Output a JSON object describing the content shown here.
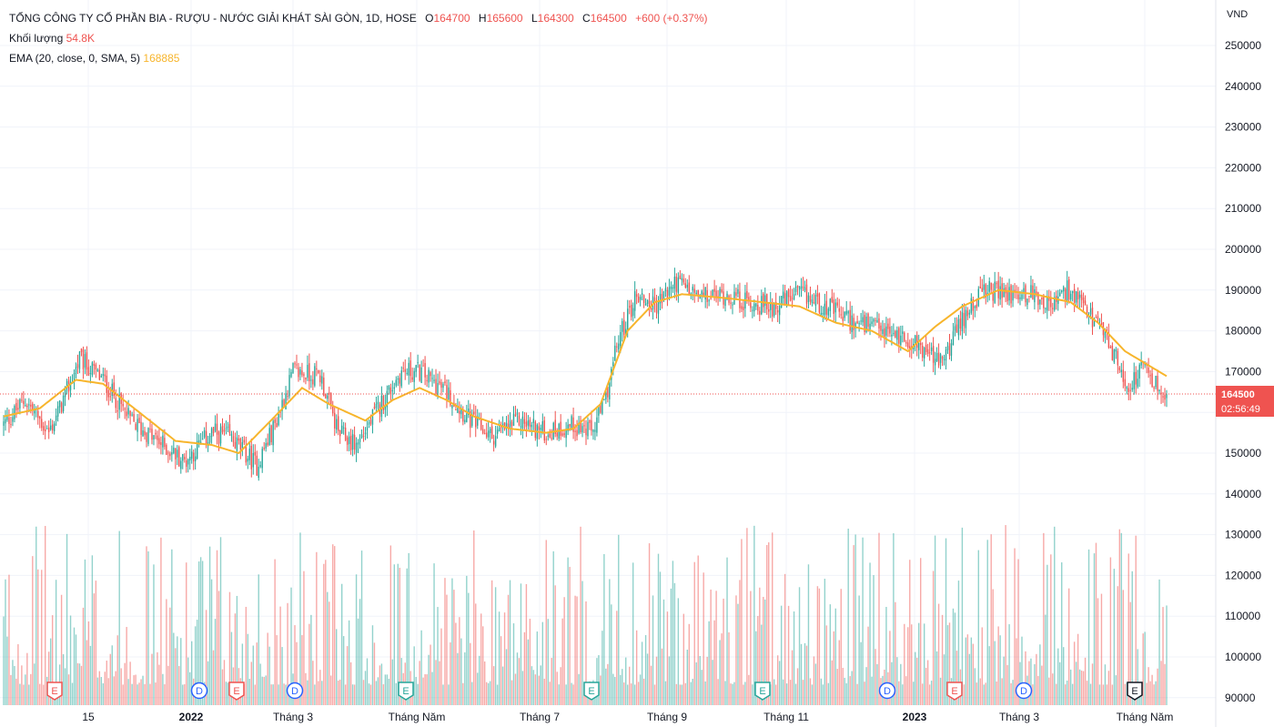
{
  "legend": {
    "title": "TỔNG CÔNG TY CỔ PHẦN BIA - RƯỢU - NƯỚC GIẢI KHÁT SÀI GÒN, 1D, HOSE",
    "open_label": "O",
    "open": "164700",
    "high_label": "H",
    "high": "165600",
    "low_label": "L",
    "low": "164300",
    "close_label": "C",
    "close": "164500",
    "change": "+600 (+0.37%)",
    "volume_label": "Khối lượng",
    "volume": "54.8K",
    "ema_label": "EMA (20, close, 0, SMA, 5)",
    "ema": "168885"
  },
  "currency": "VND",
  "last_price": {
    "price": "164500",
    "countdown": "02:56:49"
  },
  "colors": {
    "up": "#26a69a",
    "down": "#ef5350",
    "ema": "#f7b52c",
    "grid": "#f0f3fa",
    "text": "#131722"
  },
  "markers": [
    {
      "letter": "E",
      "kind": "earnings-miss",
      "x_label_index": 0
    },
    {
      "letter": "D",
      "kind": "dividend"
    },
    {
      "letter": "E",
      "kind": "earnings-miss"
    },
    {
      "letter": "D",
      "kind": "dividend"
    },
    {
      "letter": "E",
      "kind": "earnings-beat"
    },
    {
      "letter": "E",
      "kind": "earnings-beat"
    },
    {
      "letter": "E",
      "kind": "earnings-beat"
    },
    {
      "letter": "D",
      "kind": "dividend"
    },
    {
      "letter": "E",
      "kind": "earnings-miss"
    },
    {
      "letter": "D",
      "kind": "dividend"
    },
    {
      "letter": "E",
      "kind": "earnings-upcoming"
    }
  ],
  "chart_data": {
    "type": "candlestick",
    "ylim": [
      90000,
      255000
    ],
    "y_ticks": [
      "250000",
      "240000",
      "230000",
      "220000",
      "210000",
      "200000",
      "190000",
      "180000",
      "170000",
      "160000",
      "150000",
      "140000",
      "130000",
      "120000",
      "110000",
      "100000",
      "90000"
    ],
    "x_labels": [
      "15",
      "2022",
      "Tháng 3",
      "Tháng Năm",
      "Tháng 7",
      "Tháng 9",
      "Tháng 11",
      "2023",
      "Tháng 3",
      "Tháng Năm"
    ],
    "bold_x_labels": [
      "2022",
      "2023"
    ],
    "price_anchors": [
      [
        0,
        157000
      ],
      [
        12,
        163000
      ],
      [
        25,
        155000
      ],
      [
        33,
        163000
      ],
      [
        42,
        173000
      ],
      [
        55,
        168000
      ],
      [
        70,
        158000
      ],
      [
        85,
        153000
      ],
      [
        100,
        148000
      ],
      [
        115,
        155000
      ],
      [
        125,
        154000
      ],
      [
        140,
        147000
      ],
      [
        150,
        157000
      ],
      [
        160,
        170000
      ],
      [
        175,
        169000
      ],
      [
        185,
        155000
      ],
      [
        195,
        152000
      ],
      [
        210,
        163000
      ],
      [
        220,
        170000
      ],
      [
        230,
        170000
      ],
      [
        245,
        165000
      ],
      [
        258,
        158000
      ],
      [
        270,
        154000
      ],
      [
        285,
        158000
      ],
      [
        300,
        155000
      ],
      [
        315,
        157000
      ],
      [
        325,
        155000
      ],
      [
        332,
        162000
      ],
      [
        340,
        178000
      ],
      [
        350,
        189000
      ],
      [
        360,
        186000
      ],
      [
        372,
        192000
      ],
      [
        385,
        188000
      ],
      [
        400,
        189000
      ],
      [
        410,
        187000
      ],
      [
        425,
        186000
      ],
      [
        440,
        189000
      ],
      [
        455,
        186000
      ],
      [
        470,
        182000
      ],
      [
        485,
        180000
      ],
      [
        500,
        178000
      ],
      [
        510,
        175000
      ],
      [
        518,
        172000
      ],
      [
        525,
        178000
      ],
      [
        535,
        187000
      ],
      [
        545,
        190000
      ],
      [
        555,
        189000
      ],
      [
        570,
        189000
      ],
      [
        580,
        186000
      ],
      [
        588,
        190000
      ],
      [
        600,
        184000
      ],
      [
        610,
        178000
      ],
      [
        622,
        166000
      ],
      [
        630,
        171000
      ],
      [
        640,
        165000
      ],
      [
        643,
        164500
      ]
    ],
    "ema_anchors": [
      [
        0,
        159000
      ],
      [
        20,
        161000
      ],
      [
        40,
        168000
      ],
      [
        55,
        167000
      ],
      [
        75,
        160000
      ],
      [
        95,
        153000
      ],
      [
        115,
        152000
      ],
      [
        130,
        150000
      ],
      [
        150,
        159000
      ],
      [
        165,
        166000
      ],
      [
        180,
        162000
      ],
      [
        200,
        158000
      ],
      [
        215,
        163000
      ],
      [
        230,
        166000
      ],
      [
        245,
        163000
      ],
      [
        260,
        159000
      ],
      [
        280,
        156000
      ],
      [
        300,
        155000
      ],
      [
        315,
        156000
      ],
      [
        330,
        162000
      ],
      [
        345,
        180000
      ],
      [
        360,
        187000
      ],
      [
        375,
        189000
      ],
      [
        400,
        188000
      ],
      [
        420,
        187000
      ],
      [
        440,
        186000
      ],
      [
        460,
        182000
      ],
      [
        480,
        180000
      ],
      [
        500,
        175000
      ],
      [
        515,
        181000
      ],
      [
        530,
        186000
      ],
      [
        550,
        190000
      ],
      [
        570,
        189000
      ],
      [
        590,
        187000
      ],
      [
        605,
        182000
      ],
      [
        620,
        175000
      ],
      [
        643,
        168885
      ]
    ],
    "volume_scale_max": 130000,
    "num_bars": 644,
    "last_close": 164500,
    "ema_last": 168885
  }
}
